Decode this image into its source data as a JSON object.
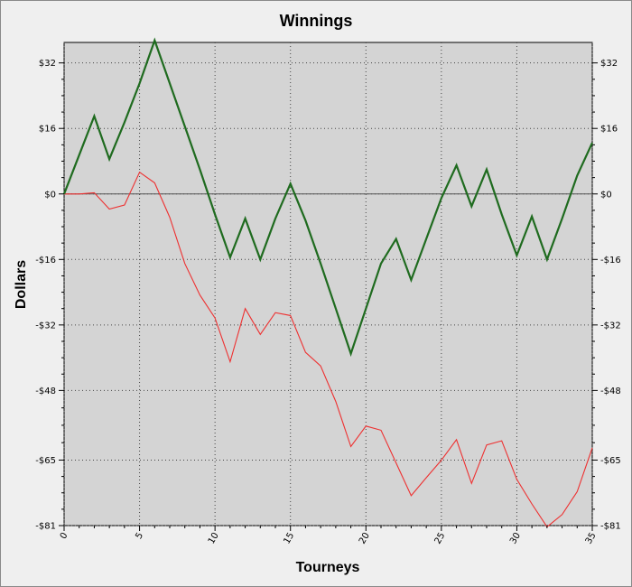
{
  "chart_data": {
    "type": "line",
    "title": "Winnings",
    "xlabel": "Tourneys",
    "ylabel": "Dollars",
    "xlim": [
      0,
      35
    ],
    "ylim": [
      -81,
      37
    ],
    "x_ticks": [
      {
        "value": 0,
        "label": "0"
      },
      {
        "value": 5,
        "label": "5"
      },
      {
        "value": 10,
        "label": "10"
      },
      {
        "value": 15,
        "label": "15"
      },
      {
        "value": 20,
        "label": "20"
      },
      {
        "value": 25,
        "label": "25"
      },
      {
        "value": 30,
        "label": "30"
      },
      {
        "value": 35,
        "label": "35"
      }
    ],
    "y_ticks": [
      {
        "value": 32,
        "label": "$32"
      },
      {
        "value": 16,
        "label": "$16"
      },
      {
        "value": 0,
        "label": "$0"
      },
      {
        "value": -16,
        "label": "-$16"
      },
      {
        "value": -32,
        "label": "-$32"
      },
      {
        "value": -48,
        "label": "-$48"
      },
      {
        "value": -65,
        "label": "-$65"
      },
      {
        "value": -81,
        "label": "-$81"
      }
    ],
    "grid": true,
    "zero_line": true,
    "x": [
      0,
      1,
      2,
      3,
      4,
      5,
      6,
      7,
      8,
      9,
      10,
      11,
      12,
      13,
      14,
      15,
      16,
      17,
      18,
      19,
      20,
      21,
      22,
      23,
      24,
      25,
      26,
      27,
      28,
      29,
      30,
      31,
      32,
      33,
      34,
      35
    ],
    "series": [
      {
        "color": "#1f6b1f",
        "values": [
          0,
          9.5,
          19,
          8.5,
          17.5,
          27,
          37.5,
          27,
          16.5,
          6,
          -5,
          -15.5,
          -6,
          -16,
          -6,
          2.5,
          -6.5,
          -17,
          -28,
          -39,
          -28,
          -17,
          -11,
          -21,
          -11,
          -1,
          7,
          -3,
          6,
          -5,
          -15,
          -5.5,
          -16,
          -6,
          4.5,
          12.5
        ]
      },
      {
        "color": "#ee3030",
        "values": [
          0,
          0,
          0.3,
          -3.7,
          -2.7,
          5.3,
          2.7,
          -5.7,
          -17,
          -24.7,
          -30.3,
          -41,
          -28,
          -34.3,
          -29,
          -29.7,
          -38.7,
          -42,
          -50.7,
          -61.7,
          -56.7,
          -57.7,
          -65.7,
          -73.7,
          -69.3,
          -65,
          -60,
          -70.7,
          -61.3,
          -60.3,
          -69.7,
          -75.7,
          -81.3,
          -78.3,
          -72.7,
          -62
        ]
      }
    ]
  }
}
